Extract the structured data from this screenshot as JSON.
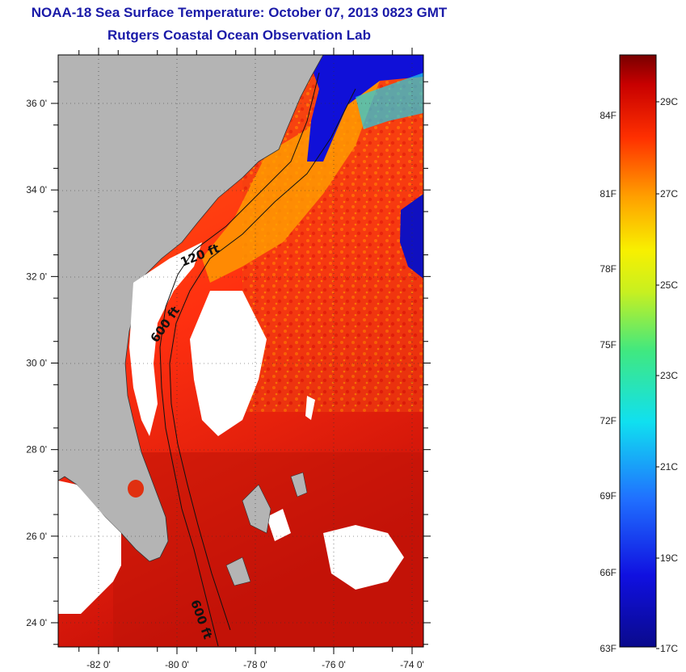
{
  "title": "NOAA-18 Sea Surface Temperature:  October 07, 2013 0823 GMT",
  "subtitle": "Rutgers Coastal Ocean Observation Lab",
  "lat_ticks": [
    {
      "deg": 36,
      "label": "36 0'"
    },
    {
      "deg": 34,
      "label": "34 0'"
    },
    {
      "deg": 32,
      "label": "32 0'"
    },
    {
      "deg": 30,
      "label": "30 0'"
    },
    {
      "deg": 28,
      "label": "28 0'"
    },
    {
      "deg": 26,
      "label": "26 0'"
    },
    {
      "deg": 24,
      "label": "24 0'"
    }
  ],
  "lon_ticks": [
    {
      "deg": -82,
      "label": "-82 0'"
    },
    {
      "deg": -80,
      "label": "-80 0'"
    },
    {
      "deg": -78,
      "label": "-78 0'"
    },
    {
      "deg": -76,
      "label": "-76 0'"
    },
    {
      "deg": -74,
      "label": "-74 0'"
    }
  ],
  "contour_labels": [
    "120 ft",
    "600 ft",
    "600 ft"
  ],
  "colorbar": {
    "fahrenheit": [
      "84F",
      "81F",
      "78F",
      "75F",
      "72F",
      "69F",
      "66F",
      "63F"
    ],
    "celsius": [
      "29C",
      "27C",
      "25C",
      "23C",
      "21C",
      "19C",
      "17C"
    ]
  },
  "colors": {
    "land": "#b4b4b4",
    "cloud": "#ffffff",
    "title": "#1a1aa8"
  }
}
